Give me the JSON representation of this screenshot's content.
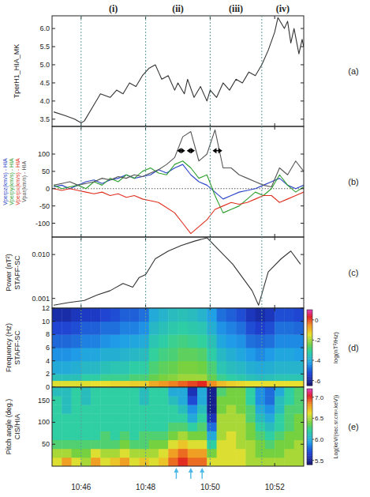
{
  "chart_data": [
    {
      "type": "line",
      "panel": "(a)",
      "ylabel": "TperH1_HIA_MK",
      "color": "#333333",
      "x": [
        45.15,
        45.5,
        45.8,
        46.0,
        46.1,
        46.4,
        46.6,
        46.9,
        47.1,
        47.3,
        47.5,
        47.7,
        47.9,
        48.1,
        48.3,
        48.4,
        48.5,
        48.7,
        48.9,
        49.0,
        49.2,
        49.3,
        49.5,
        49.7,
        49.9,
        50.0,
        50.2,
        50.4,
        50.6,
        50.8,
        51.0,
        51.2,
        51.4,
        51.6,
        51.8,
        52.0,
        52.1,
        52.3,
        52.4,
        52.5,
        52.6,
        52.75,
        52.85,
        52.9
      ],
      "values": [
        3.7,
        3.6,
        3.5,
        3.4,
        3.45,
        3.9,
        4.2,
        4.1,
        4.3,
        4.2,
        4.5,
        4.4,
        4.7,
        4.9,
        5.0,
        4.8,
        4.6,
        4.7,
        4.3,
        4.5,
        4.2,
        4.6,
        4.1,
        4.4,
        4.0,
        4.3,
        4.1,
        4.5,
        4.3,
        4.6,
        4.5,
        4.8,
        4.7,
        5.0,
        5.4,
        5.9,
        6.3,
        6.0,
        6.2,
        5.6,
        6.0,
        5.3,
        5.7,
        5.5
      ],
      "xlim": [
        45.1,
        52.9
      ],
      "xticks": [
        46,
        48,
        50,
        52
      ],
      "ylim": [
        3.3,
        6.35
      ],
      "yticks": [
        3.5,
        {
          "value": 4,
          "label": "4.0"
        },
        4.5,
        {
          "value": 5,
          "label": "5.0"
        },
        5.5,
        {
          "value": 6,
          "label": "6.0"
        }
      ],
      "tick_labels": "y",
      "dividers": [
        46.0,
        48.0,
        50.0,
        51.6
      ],
      "intervals": [
        {
          "label": "(i)",
          "x": 47.0
        },
        {
          "label": "(ii)",
          "x": 49.0
        },
        {
          "label": "(iii)",
          "x": 50.8
        },
        {
          "label": "(iv)",
          "x": 52.25
        }
      ]
    },
    {
      "type": "line",
      "panel": "(b)",
      "x": [
        45.15,
        45.4,
        45.65,
        45.9,
        46.15,
        46.4,
        46.65,
        46.9,
        47.15,
        47.4,
        47.65,
        47.9,
        48.15,
        48.4,
        48.65,
        48.9,
        49.15,
        49.4,
        49.65,
        49.9,
        50.15,
        50.4,
        50.65,
        50.9,
        51.15,
        51.4,
        51.65,
        51.9,
        52.15,
        52.4,
        52.65,
        52.9
      ],
      "series": [
        {
          "name": "Vperpz(km/s) - HIA",
          "color": "#2a44c8",
          "values": [
            5,
            10,
            0,
            10,
            20,
            25,
            15,
            25,
            30,
            40,
            30,
            35,
            40,
            55,
            45,
            60,
            70,
            40,
            20,
            10,
            -10,
            -30,
            -20,
            -10,
            -5,
            0,
            10,
            20,
            30,
            10,
            0,
            10
          ]
        },
        {
          "name": "Vperpy(km/s) - HIA",
          "color": "#2e9e2e",
          "values": [
            10,
            0,
            5,
            10,
            0,
            20,
            10,
            30,
            20,
            40,
            30,
            50,
            60,
            45,
            40,
            70,
            80,
            60,
            30,
            40,
            -20,
            -70,
            -60,
            -50,
            -30,
            -10,
            -20,
            0,
            40,
            10,
            -10,
            5
          ]
        },
        {
          "name": "Vperpx(km/s) - HIA",
          "color": "#e03020",
          "values": [
            0,
            -5,
            0,
            -5,
            -10,
            -15,
            -10,
            -20,
            -15,
            -25,
            -20,
            -30,
            -35,
            -40,
            -55,
            -70,
            -100,
            -130,
            -110,
            -90,
            -60,
            -50,
            -40,
            -45,
            -40,
            -30,
            -20,
            -20,
            -40,
            -30,
            -20,
            -10
          ]
        },
        {
          "name": "Vpar(km/s) - HIA",
          "color": "#555555",
          "values": [
            10,
            15,
            20,
            10,
            15,
            20,
            30,
            25,
            35,
            30,
            40,
            35,
            45,
            55,
            70,
            90,
            150,
            165,
            80,
            100,
            170,
            60,
            60,
            40,
            30,
            20,
            10,
            5,
            60,
            40,
            80,
            50
          ]
        }
      ],
      "xlim": [
        45.1,
        52.9
      ],
      "xticks": [
        46,
        48,
        50,
        52
      ],
      "ylim": [
        -140,
        180
      ],
      "yticks": [
        -100,
        -50,
        0,
        50,
        100
      ],
      "tick_labels": "y",
      "annotations": [
        {
          "x0": 48.95,
          "x1": 49.25,
          "y": 110
        },
        {
          "x0": 49.25,
          "x1": 49.55,
          "y": 110
        },
        {
          "x0": 50.05,
          "x1": 50.4,
          "y": 110
        }
      ]
    },
    {
      "type": "line",
      "panel": "(c)",
      "ylabel": [
        "Power (nT²)",
        "STAFF-SC"
      ],
      "color": "#333333",
      "log": "y",
      "x": [
        45.15,
        45.6,
        46.1,
        46.5,
        46.9,
        47.3,
        47.6,
        47.8,
        48.0,
        48.3,
        48.7,
        49.1,
        49.5,
        49.9,
        50.3,
        50.7,
        51.0,
        51.3,
        51.5,
        51.8,
        52.2,
        52.5,
        52.8
      ],
      "values": [
        0.0007,
        0.0008,
        0.0009,
        0.0012,
        0.0015,
        0.0022,
        0.0018,
        0.003,
        0.0035,
        0.008,
        0.012,
        0.016,
        0.02,
        0.024,
        0.012,
        0.006,
        0.003,
        0.0015,
        0.0007,
        0.004,
        0.008,
        0.012,
        0.006
      ],
      "xlim": [
        45.1,
        52.9
      ],
      "xticks": [
        46,
        48,
        50,
        52
      ],
      "ylim": [
        0.0006,
        0.025
      ],
      "yticks": [
        0.001,
        {
          "value": 0.01,
          "label": "0.010"
        }
      ],
      "tick_labels": "y"
    },
    {
      "type": "heatmap",
      "panel": "(d)",
      "ylabel": [
        "Frequency (Hz)",
        "STAFF-SC"
      ],
      "x_edges": [
        45.1,
        45.4,
        45.7,
        46.0,
        46.3,
        46.6,
        46.9,
        47.2,
        47.5,
        47.8,
        48.1,
        48.4,
        48.7,
        49.0,
        49.3,
        49.6,
        49.9,
        50.2,
        50.5,
        50.8,
        51.1,
        51.4,
        51.7,
        52.0,
        52.3,
        52.6,
        52.9
      ],
      "y_edges": [
        0,
        1,
        2,
        4,
        6,
        8,
        10,
        12
      ],
      "cells": [
        [
          -1.5,
          -1.5,
          -1.5,
          -1.5,
          -1.4,
          -1.4,
          -1.3,
          -1.3,
          -1.2,
          -1.2,
          -0.8,
          -0.6,
          -0.4,
          -0.2,
          0,
          0.2,
          -0.5,
          -1.0,
          -1.2,
          -1.3,
          -1.4,
          -1.4,
          -1.4,
          -1.4,
          -1.4,
          -1.4
        ],
        [
          -3.5,
          -3.5,
          -3.5,
          -3.2,
          -3.2,
          -3.0,
          -3.0,
          -3.0,
          -2.8,
          -2.8,
          -2.5,
          -2.3,
          -2.2,
          -2.0,
          -2.0,
          -2.0,
          -2.5,
          -3.0,
          -3.2,
          -3.3,
          -3.5,
          -3.6,
          -3.5,
          -3.4,
          -3.4,
          -3.4
        ],
        [
          -4.0,
          -4.0,
          -3.9,
          -3.7,
          -3.7,
          -3.5,
          -3.4,
          -3.4,
          -3.2,
          -3.2,
          -2.8,
          -2.6,
          -2.5,
          -2.3,
          -2.3,
          -2.4,
          -2.8,
          -3.4,
          -3.6,
          -3.7,
          -3.9,
          -4.0,
          -3.9,
          -3.8,
          -3.8,
          -3.8
        ],
        [
          -4.4,
          -4.4,
          -4.3,
          -4.1,
          -4.1,
          -3.9,
          -3.9,
          -3.8,
          -3.7,
          -3.6,
          -3.1,
          -2.9,
          -2.8,
          -2.6,
          -2.6,
          -2.7,
          -3.2,
          -3.7,
          -3.9,
          -4.1,
          -4.3,
          -4.5,
          -4.3,
          -4.1,
          -4.1,
          -4.2
        ],
        [
          -4.9,
          -4.9,
          -4.8,
          -4.6,
          -4.6,
          -4.4,
          -4.3,
          -4.2,
          -4.1,
          -4.0,
          -3.4,
          -3.2,
          -3.0,
          -2.9,
          -3.0,
          -3.1,
          -3.5,
          -4.1,
          -4.3,
          -4.4,
          -4.8,
          -4.9,
          -4.8,
          -4.5,
          -4.5,
          -4.5
        ],
        [
          -5.3,
          -5.3,
          -5.2,
          -5.0,
          -5.0,
          -4.8,
          -4.8,
          -4.6,
          -4.6,
          -4.4,
          -3.7,
          -3.5,
          -3.3,
          -3.2,
          -3.3,
          -3.4,
          -3.9,
          -4.4,
          -4.6,
          -4.8,
          -5.2,
          -5.4,
          -5.2,
          -4.8,
          -4.8,
          -4.9
        ],
        [
          -5.8,
          -5.8,
          -5.6,
          -5.5,
          -5.5,
          -5.3,
          -5.2,
          -5.0,
          -5.0,
          -4.8,
          -4.0,
          -3.8,
          -3.6,
          -3.5,
          -3.6,
          -3.8,
          -4.2,
          -4.8,
          -5.0,
          -5.2,
          -5.6,
          -5.8,
          -5.6,
          -5.2,
          -5.2,
          -5.3
        ]
      ],
      "colorbar": {
        "label": "log(nT²/Hz)",
        "range": [
          -6.5,
          1
        ],
        "ticks": [
          -6,
          -4,
          -2,
          0
        ]
      },
      "xlim": [
        45.1,
        52.9
      ],
      "xticks": [
        46,
        48,
        50,
        52
      ],
      "ylim": [
        0,
        12
      ],
      "yticks": [
        0,
        2,
        4,
        6,
        8,
        10,
        12
      ],
      "tick_labels": "y"
    },
    {
      "type": "heatmap",
      "panel": "(e)",
      "ylabel": [
        "Pitch angle (deg.)",
        "CIS/HIA"
      ],
      "x_edges": [
        45.1,
        45.4,
        45.7,
        46.0,
        46.3,
        46.6,
        46.9,
        47.2,
        47.5,
        47.8,
        48.1,
        48.4,
        48.7,
        49.0,
        49.3,
        49.6,
        49.9,
        50.2,
        50.5,
        50.8,
        51.1,
        51.4,
        51.7,
        52.0,
        52.3,
        52.6,
        52.9
      ],
      "y_edges": [
        0,
        20,
        40,
        60,
        80,
        100,
        120,
        140,
        160,
        180
      ],
      "cells": [
        [
          6.6,
          6.8,
          6.6,
          6.5,
          6.8,
          6.6,
          6.7,
          6.8,
          6.6,
          6.7,
          6.6,
          6.7,
          6.9,
          7.0,
          6.9,
          6.9,
          6.6,
          6.6,
          6.6,
          6.6,
          6.5,
          6.5,
          6.5,
          6.5,
          6.5,
          6.5
        ],
        [
          6.5,
          6.5,
          6.4,
          6.4,
          6.6,
          6.5,
          6.5,
          6.6,
          6.5,
          6.5,
          6.5,
          6.6,
          6.8,
          6.9,
          6.8,
          6.8,
          6.4,
          6.6,
          6.6,
          6.6,
          6.5,
          6.4,
          6.4,
          6.4,
          6.5,
          6.5
        ],
        [
          6.3,
          6.3,
          6.3,
          6.3,
          6.3,
          6.3,
          6.3,
          6.4,
          6.3,
          6.3,
          6.4,
          6.4,
          6.6,
          6.7,
          6.6,
          6.6,
          6.2,
          6.6,
          6.6,
          6.5,
          6.5,
          6.4,
          6.3,
          6.4,
          6.4,
          6.5
        ],
        [
          6.2,
          6.2,
          6.2,
          6.2,
          6.2,
          6.3,
          6.2,
          6.3,
          6.2,
          6.3,
          6.3,
          6.3,
          6.4,
          6.5,
          6.4,
          6.4,
          6.0,
          6.5,
          6.6,
          6.5,
          6.4,
          6.3,
          6.2,
          6.3,
          6.4,
          6.4
        ],
        [
          6.2,
          6.2,
          6.2,
          6.2,
          6.2,
          6.2,
          6.2,
          6.2,
          6.2,
          6.2,
          6.2,
          6.2,
          6.3,
          6.3,
          6.2,
          6.3,
          5.8,
          6.5,
          6.5,
          6.5,
          6.4,
          6.2,
          6.1,
          6.2,
          6.3,
          6.4
        ],
        [
          6.2,
          6.2,
          6.2,
          6.2,
          6.2,
          6.2,
          6.2,
          6.2,
          6.2,
          6.2,
          6.2,
          6.2,
          6.2,
          6.2,
          6.0,
          6.2,
          5.6,
          6.5,
          6.5,
          6.5,
          6.3,
          6.1,
          6.0,
          6.2,
          6.3,
          6.4
        ],
        [
          6.2,
          6.1,
          6.2,
          6.2,
          6.2,
          6.2,
          6.2,
          6.2,
          6.2,
          6.2,
          6.2,
          6.2,
          6.2,
          6.1,
          5.9,
          6.1,
          5.5,
          6.4,
          6.5,
          6.4,
          6.3,
          6.0,
          5.9,
          6.1,
          6.3,
          6.3
        ],
        [
          6.2,
          6.1,
          6.2,
          6.1,
          6.2,
          6.2,
          6.2,
          6.2,
          6.2,
          6.1,
          6.2,
          6.2,
          6.1,
          6.0,
          5.7,
          6.0,
          5.5,
          6.4,
          6.4,
          6.4,
          6.2,
          5.9,
          5.8,
          6.1,
          6.2,
          6.3
        ],
        [
          6.1,
          6.1,
          6.2,
          6.1,
          6.2,
          6.2,
          6.2,
          6.2,
          6.2,
          6.1,
          6.2,
          6.2,
          6.0,
          6.0,
          5.6,
          6.0,
          5.5,
          6.3,
          6.4,
          6.4,
          6.2,
          5.9,
          5.8,
          6.0,
          6.2,
          6.3
        ]
      ],
      "colorbar": {
        "label": "Log(keV/(sec.sr.cm².keV))",
        "range": [
          5.4,
          7.2
        ],
        "ticks": [
          5.5,
          {
            "value": 6,
            "label": "6.0"
          },
          6.5,
          {
            "value": 7,
            "label": "7.0"
          }
        ]
      },
      "xlim": [
        45.1,
        52.9
      ],
      "xticks": [
        {
          "value": 46,
          "label": "10:46"
        },
        {
          "value": 48,
          "label": "10:48"
        },
        {
          "value": 50,
          "label": "10:50"
        },
        {
          "value": 52,
          "label": "10:52"
        }
      ],
      "ylim": [
        0,
        180
      ],
      "yticks": [
        50,
        100,
        150
      ],
      "arrows": [
        48.95,
        49.4,
        49.75
      ]
    }
  ]
}
